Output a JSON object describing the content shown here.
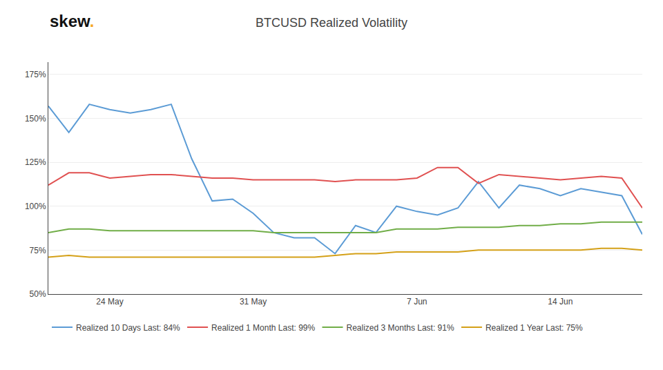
{
  "chart_data": {
    "type": "line",
    "title": "BTCUSD Realized Volatility",
    "annotations": [
      {
        "text": "skew",
        "color": "#111111"
      },
      {
        "text": ".",
        "color": "#F5A623"
      }
    ],
    "categories": [
      null,
      null,
      null,
      "24 May",
      null,
      null,
      null,
      null,
      null,
      null,
      "31 May",
      null,
      null,
      null,
      null,
      null,
      null,
      null,
      "7 Jun",
      null,
      null,
      null,
      null,
      null,
      null,
      "14 Jun",
      null,
      null,
      null,
      null
    ],
    "series": [
      {
        "name": "Realized 10 Days Last: 84%",
        "color": "#5B9BD5",
        "values": [
          157,
          142,
          158,
          155,
          153,
          155,
          158,
          127,
          103,
          104,
          96,
          85,
          82,
          82,
          73,
          89,
          85,
          100,
          97,
          95,
          99,
          114,
          99,
          112,
          110,
          106,
          110,
          108,
          106,
          84
        ]
      },
      {
        "name": "Realized 1 Month Last: 99%",
        "color": "#E05050",
        "values": [
          112,
          119,
          119,
          116,
          117,
          118,
          118,
          117,
          116,
          116,
          115,
          115,
          115,
          115,
          114,
          115,
          115,
          115,
          116,
          122,
          122,
          113,
          118,
          117,
          116,
          115,
          116,
          117,
          116,
          99
        ]
      },
      {
        "name": "Realized 3 Months Last: 91%",
        "color": "#70AD47",
        "values": [
          85,
          87,
          87,
          86,
          86,
          86,
          86,
          86,
          86,
          86,
          86,
          85,
          85,
          85,
          85,
          85,
          85,
          87,
          87,
          87,
          88,
          88,
          88,
          89,
          89,
          90,
          90,
          91,
          91,
          91
        ]
      },
      {
        "name": "Realized 1 Year Last: 75%",
        "color": "#D4A017",
        "values": [
          71,
          72,
          71,
          71,
          71,
          71,
          71,
          71,
          71,
          71,
          71,
          71,
          71,
          71,
          72,
          73,
          73,
          74,
          74,
          74,
          74,
          75,
          75,
          75,
          75,
          75,
          75,
          76,
          76,
          75
        ]
      }
    ],
    "ylim": [
      50,
      182
    ],
    "yticks": [
      {
        "value": 50,
        "label": "50%"
      },
      {
        "value": 75,
        "label": "75%"
      },
      {
        "value": 100,
        "label": "100%"
      },
      {
        "value": 125,
        "label": "125%"
      },
      {
        "value": 150,
        "label": "150%"
      },
      {
        "value": 175,
        "label": "175%"
      }
    ],
    "grid": true,
    "legend": "bottom"
  }
}
